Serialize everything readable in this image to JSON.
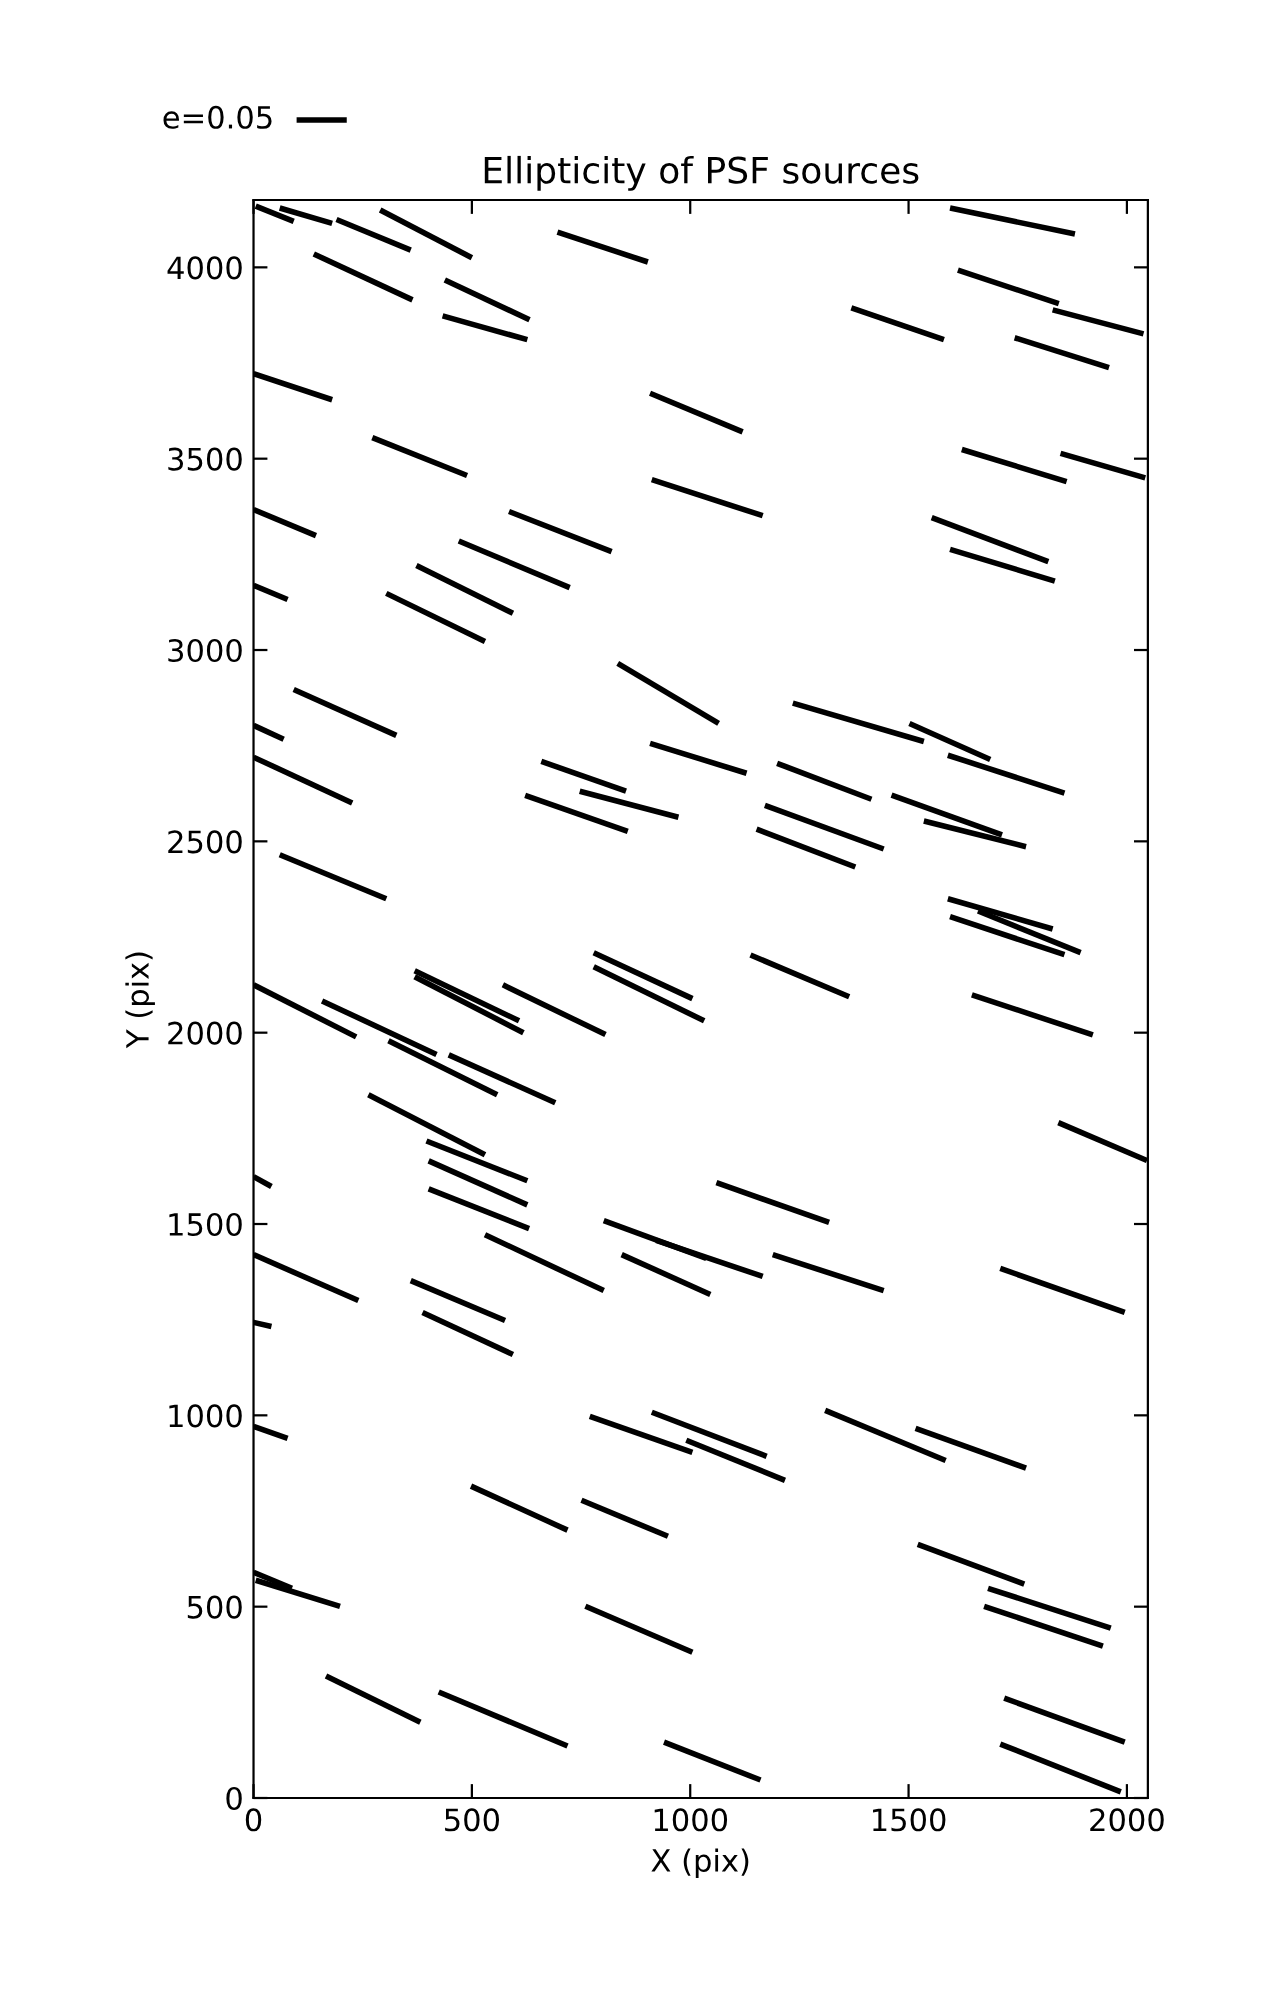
{
  "chart_data": {
    "type": "line",
    "title": "Ellipticity of PSF sources",
    "xlabel": "X (pix)",
    "ylabel": "Y (pix)",
    "xlim": [
      0,
      2048
    ],
    "ylim": [
      0,
      4176
    ],
    "xticks": [
      0,
      500,
      1000,
      1500,
      2000
    ],
    "yticks": [
      0,
      500,
      1000,
      1500,
      2000,
      2500,
      3000,
      3500,
      4000
    ],
    "grid": false,
    "marker": "none",
    "line_style": "solid",
    "annotations": [
      "e=0.05"
    ],
    "series": [
      {
        "x": [
          5,
          92
        ],
        "values": [
          4160,
          4120
        ],
        "color": "#000000"
      },
      {
        "x": [
          60,
          180
        ],
        "values": [
          4155,
          4115
        ],
        "color": "#000000"
      },
      {
        "x": [
          190,
          360
        ],
        "values": [
          4125,
          4045
        ],
        "color": "#000000"
      },
      {
        "x": [
          290,
          500
        ],
        "values": [
          4150,
          4025
        ],
        "color": "#000000"
      },
      {
        "x": [
          138,
          364
        ],
        "values": [
          4035,
          3915
        ],
        "color": "#000000"
      },
      {
        "x": [
          438,
          632
        ],
        "values": [
          3967,
          3863
        ],
        "color": "#000000"
      },
      {
        "x": [
          433,
          627
        ],
        "values": [
          3873,
          3811
        ],
        "color": "#000000"
      },
      {
        "x": [
          696,
          903
        ],
        "values": [
          4092,
          4014
        ],
        "color": "#000000"
      },
      {
        "x": [
          1595,
          1881
        ],
        "values": [
          4155,
          4087
        ],
        "color": "#000000"
      },
      {
        "x": [
          1613,
          1844
        ],
        "values": [
          3993,
          3905
        ],
        "color": "#000000"
      },
      {
        "x": [
          1830,
          2038
        ],
        "values": [
          3889,
          3826
        ],
        "color": "#000000"
      },
      {
        "x": [
          1369,
          1581
        ],
        "values": [
          3894,
          3811
        ],
        "color": "#000000"
      },
      {
        "x": [
          1743,
          1959
        ],
        "values": [
          3816,
          3738
        ],
        "color": "#000000"
      },
      {
        "x": [
          0,
          180
        ],
        "values": [
          3722,
          3654
        ],
        "color": "#000000"
      },
      {
        "x": [
          272,
          489
        ],
        "values": [
          3555,
          3456
        ],
        "color": "#000000"
      },
      {
        "x": [
          908,
          1120
        ],
        "values": [
          3671,
          3570
        ],
        "color": "#000000"
      },
      {
        "x": [
          912,
          1166
        ],
        "values": [
          3445,
          3351
        ],
        "color": "#000000"
      },
      {
        "x": [
          1622,
          1862
        ],
        "values": [
          3524,
          3440
        ],
        "color": "#000000"
      },
      {
        "x": [
          1848,
          2042
        ],
        "values": [
          3514,
          3450
        ],
        "color": "#000000"
      },
      {
        "x": [
          0,
          143
        ],
        "values": [
          3367,
          3299
        ],
        "color": "#000000"
      },
      {
        "x": [
          585,
          820
        ],
        "values": [
          3362,
          3257
        ],
        "color": "#000000"
      },
      {
        "x": [
          470,
          724
        ],
        "values": [
          3285,
          3163
        ],
        "color": "#000000"
      },
      {
        "x": [
          373,
          594
        ],
        "values": [
          3221,
          3096
        ],
        "color": "#000000"
      },
      {
        "x": [
          304,
          530
        ],
        "values": [
          3148,
          3022
        ],
        "color": "#000000"
      },
      {
        "x": [
          0,
          78
        ],
        "values": [
          3169,
          3132
        ],
        "color": "#000000"
      },
      {
        "x": [
          1553,
          1820
        ],
        "values": [
          3346,
          3231
        ],
        "color": "#000000"
      },
      {
        "x": [
          1595,
          1835
        ],
        "values": [
          3263,
          3180
        ],
        "color": "#000000"
      },
      {
        "x": [
          0,
          69
        ],
        "values": [
          2803,
          2767
        ],
        "color": "#000000"
      },
      {
        "x": [
          92,
          327
        ],
        "values": [
          2897,
          2777
        ],
        "color": "#000000"
      },
      {
        "x": [
          0,
          226
        ],
        "values": [
          2720,
          2600
        ],
        "color": "#000000"
      },
      {
        "x": [
          834,
          1065
        ],
        "values": [
          2965,
          2808
        ],
        "color": "#000000"
      },
      {
        "x": [
          908,
          1129
        ],
        "values": [
          2756,
          2678
        ],
        "color": "#000000"
      },
      {
        "x": [
          747,
          973
        ],
        "values": [
          2631,
          2563
        ],
        "color": "#000000"
      },
      {
        "x": [
          659,
          853
        ],
        "values": [
          2709,
          2631
        ],
        "color": "#000000"
      },
      {
        "x": [
          622,
          857
        ],
        "values": [
          2620,
          2526
        ],
        "color": "#000000"
      },
      {
        "x": [
          1235,
          1535
        ],
        "values": [
          2861,
          2761
        ],
        "color": "#000000"
      },
      {
        "x": [
          1502,
          1687
        ],
        "values": [
          2808,
          2714
        ],
        "color": "#000000"
      },
      {
        "x": [
          1590,
          1857
        ],
        "values": [
          2725,
          2626
        ],
        "color": "#000000"
      },
      {
        "x": [
          1199,
          1415
        ],
        "values": [
          2704,
          2610
        ],
        "color": "#000000"
      },
      {
        "x": [
          1171,
          1443
        ],
        "values": [
          2594,
          2480
        ],
        "color": "#000000"
      },
      {
        "x": [
          1152,
          1378
        ],
        "values": [
          2532,
          2433
        ],
        "color": "#000000"
      },
      {
        "x": [
          1461,
          1714
        ],
        "values": [
          2621,
          2517
        ],
        "color": "#000000"
      },
      {
        "x": [
          1535,
          1769
        ],
        "values": [
          2553,
          2486
        ],
        "color": "#000000"
      },
      {
        "x": [
          60,
          304
        ],
        "values": [
          2465,
          2350
        ],
        "color": "#000000"
      },
      {
        "x": [
          1590,
          1830
        ],
        "values": [
          2350,
          2271
        ],
        "color": "#000000"
      },
      {
        "x": [
          1595,
          1857
        ],
        "values": [
          2303,
          2204
        ],
        "color": "#000000"
      },
      {
        "x": [
          1659,
          1894
        ],
        "values": [
          2318,
          2209
        ],
        "color": "#000000"
      },
      {
        "x": [
          0,
          235
        ],
        "values": [
          2125,
          1989
        ],
        "color": "#000000"
      },
      {
        "x": [
          157,
          419
        ],
        "values": [
          2083,
          1943
        ],
        "color": "#000000"
      },
      {
        "x": [
          309,
          558
        ],
        "values": [
          1979,
          1838
        ],
        "color": "#000000"
      },
      {
        "x": [
          369,
          608
        ],
        "values": [
          2162,
          2031
        ],
        "color": "#000000"
      },
      {
        "x": [
          369,
          618
        ],
        "values": [
          2146,
          2000
        ],
        "color": "#000000"
      },
      {
        "x": [
          571,
          806
        ],
        "values": [
          2125,
          1995
        ],
        "color": "#000000"
      },
      {
        "x": [
          779,
          1005
        ],
        "values": [
          2209,
          2089
        ],
        "color": "#000000"
      },
      {
        "x": [
          779,
          1032
        ],
        "values": [
          2172,
          2031
        ],
        "color": "#000000"
      },
      {
        "x": [
          1138,
          1364
        ],
        "values": [
          2203,
          2094
        ],
        "color": "#000000"
      },
      {
        "x": [
          1645,
          1922
        ],
        "values": [
          2099,
          1994
        ],
        "color": "#000000"
      },
      {
        "x": [
          263,
          530
        ],
        "values": [
          1838,
          1681
        ],
        "color": "#000000"
      },
      {
        "x": [
          447,
          691
        ],
        "values": [
          1942,
          1817
        ],
        "color": "#000000"
      },
      {
        "x": [
          396,
          627
        ],
        "values": [
          1717,
          1613
        ],
        "color": "#000000"
      },
      {
        "x": [
          401,
          627
        ],
        "values": [
          1665,
          1550
        ],
        "color": "#000000"
      },
      {
        "x": [
          401,
          631
        ],
        "values": [
          1592,
          1488
        ],
        "color": "#000000"
      },
      {
        "x": [
          0,
          41
        ],
        "values": [
          1624,
          1598
        ],
        "color": "#000000"
      },
      {
        "x": [
          802,
          1037
        ],
        "values": [
          1509,
          1410
        ],
        "color": "#000000"
      },
      {
        "x": [
          922,
          1166
        ],
        "values": [
          1457,
          1363
        ],
        "color": "#000000"
      },
      {
        "x": [
          1060,
          1318
        ],
        "values": [
          1608,
          1504
        ],
        "color": "#000000"
      },
      {
        "x": [
          1189,
          1443
        ],
        "values": [
          1420,
          1326
        ],
        "color": "#000000"
      },
      {
        "x": [
          0,
          240
        ],
        "values": [
          1420,
          1300
        ],
        "color": "#000000"
      },
      {
        "x": [
          530,
          802
        ],
        "values": [
          1472,
          1326
        ],
        "color": "#000000"
      },
      {
        "x": [
          360,
          576
        ],
        "values": [
          1352,
          1248
        ],
        "color": "#000000"
      },
      {
        "x": [
          387,
          594
        ],
        "values": [
          1269,
          1159
        ],
        "color": "#000000"
      },
      {
        "x": [
          843,
          1046
        ],
        "values": [
          1420,
          1316
        ],
        "color": "#000000"
      },
      {
        "x": [
          1843,
          2046
        ],
        "values": [
          1765,
          1666
        ],
        "color": "#000000"
      },
      {
        "x": [
          0,
          41
        ],
        "values": [
          1243,
          1232
        ],
        "color": "#000000"
      },
      {
        "x": [
          1710,
          1995
        ],
        "values": [
          1384,
          1269
        ],
        "color": "#000000"
      },
      {
        "x": [
          770,
          1005
        ],
        "values": [
          997,
          903
        ],
        "color": "#000000"
      },
      {
        "x": [
          912,
          1175
        ],
        "values": [
          1008,
          893
        ],
        "color": "#000000"
      },
      {
        "x": [
          991,
          1217
        ],
        "values": [
          935,
          830
        ],
        "color": "#000000"
      },
      {
        "x": [
          1309,
          1585
        ],
        "values": [
          1013,
          882
        ],
        "color": "#000000"
      },
      {
        "x": [
          1516,
          1769
        ],
        "values": [
          966,
          862
        ],
        "color": "#000000"
      },
      {
        "x": [
          0,
          78
        ],
        "values": [
          971,
          940
        ],
        "color": "#000000"
      },
      {
        "x": [
          498,
          719
        ],
        "values": [
          815,
          700
        ],
        "color": "#000000"
      },
      {
        "x": [
          751,
          949
        ],
        "values": [
          778,
          684
        ],
        "color": "#000000"
      },
      {
        "x": [
          760,
          1005
        ],
        "values": [
          501,
          381
        ],
        "color": "#000000"
      },
      {
        "x": [
          1521,
          1765
        ],
        "values": [
          663,
          559
        ],
        "color": "#000000"
      },
      {
        "x": [
          1682,
          1963
        ],
        "values": [
          548,
          444
        ],
        "color": "#000000"
      },
      {
        "x": [
          1673,
          1945
        ],
        "values": [
          501,
          397
        ],
        "color": "#000000"
      },
      {
        "x": [
          0,
          88
        ],
        "values": [
          590,
          548
        ],
        "color": "#000000"
      },
      {
        "x": [
          5,
          198
        ],
        "values": [
          569,
          501
        ],
        "color": "#000000"
      },
      {
        "x": [
          166,
          382
        ],
        "values": [
          319,
          198
        ],
        "color": "#000000"
      },
      {
        "x": [
          424,
          719
        ],
        "values": [
          277,
          136
        ],
        "color": "#000000"
      },
      {
        "x": [
          940,
          1161
        ],
        "values": [
          146,
          47
        ],
        "color": "#000000"
      },
      {
        "x": [
          1710,
          1986
        ],
        "values": [
          141,
          16
        ],
        "color": "#000000"
      },
      {
        "x": [
          1719,
          1995
        ],
        "values": [
          261,
          146
        ],
        "color": "#000000"
      }
    ]
  }
}
